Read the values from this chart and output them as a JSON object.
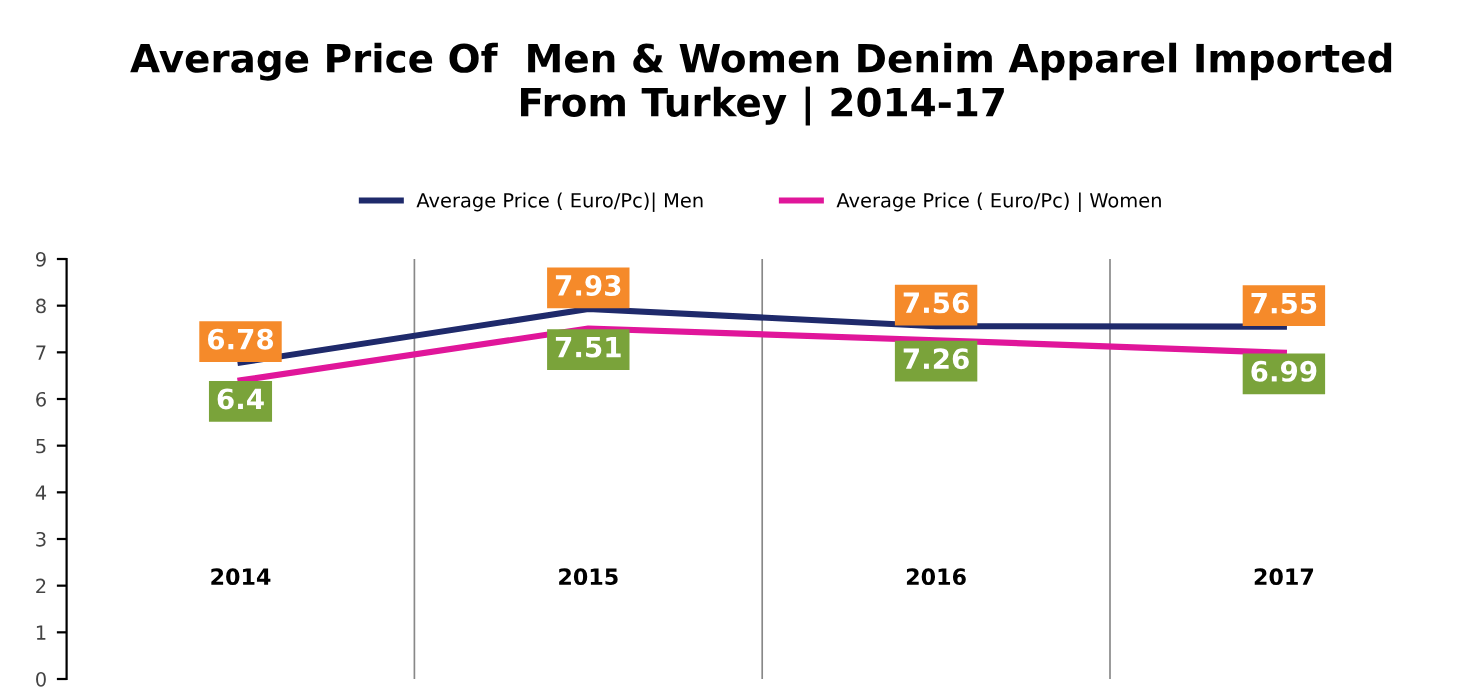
{
  "chart_data": {
    "type": "line",
    "title": "Average Price Of  Men & Women Denim Apparel Imported\nFrom Turkey | 2014-17",
    "categories": [
      "2014",
      "2015",
      "2016",
      "2017"
    ],
    "series": [
      {
        "name": "Average Price ( Euro/Pc)| Men",
        "color": "#1f2a6b",
        "values": [
          6.78,
          7.93,
          7.56,
          7.55
        ]
      },
      {
        "name": "Average Price ( Euro/Pc) | Women",
        "color": "#e0169a",
        "values": [
          6.4,
          7.51,
          7.26,
          6.99
        ]
      }
    ],
    "ylim": [
      0,
      9
    ],
    "yticks": [
      0,
      1,
      2,
      3,
      4,
      5,
      6,
      7,
      8,
      9
    ],
    "grid": "x",
    "legend": "top",
    "data_labels": true,
    "marker": "none",
    "line_style": "solid"
  }
}
